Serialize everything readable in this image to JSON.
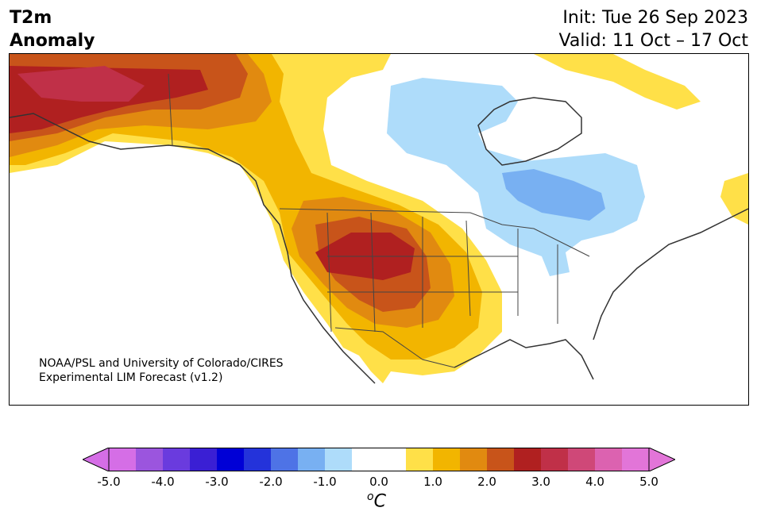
{
  "title": {
    "line1": "T2m",
    "line2": "Anomaly"
  },
  "run": {
    "init": "Init: Tue 26 Sep 2023",
    "valid": "Valid: 11 Oct – 17 Oct"
  },
  "credit": {
    "line1": "NOAA/PSL and University of Colorado/CIRES",
    "line2": "Experimental LIM Forecast (v1.2)"
  },
  "colorbar": {
    "unit_prefix": "o",
    "unit": "C",
    "tick_labels": [
      "-5.0",
      "-4.0",
      "-3.0",
      "-2.0",
      "-1.0",
      "0.0",
      "1.0",
      "2.0",
      "3.0",
      "4.0",
      "5.0"
    ],
    "colors": [
      "#d56ee6",
      "#9b55de",
      "#6a3bde",
      "#3a1fd4",
      "#0000d6",
      "#2433da",
      "#4e73e6",
      "#78b0f2",
      "#aedcfa",
      "#ffffff",
      "#ffffff",
      "#ffe048",
      "#f2b500",
      "#e18a10",
      "#c8541a",
      "#b02020",
      "#c03048",
      "#cf4878",
      "#dc62b0",
      "#e275d8"
    ],
    "extend_min_color": "#d56ee6",
    "extend_max_color": "#e275d8"
  },
  "map": {
    "region": "North America",
    "shading": {
      "strong_warm": "#b02020",
      "warm": "#c8541a",
      "mild_warm": "#e18a10",
      "slight_warm": "#f2b500",
      "faint_warm": "#ffe048",
      "faint_cool": "#aedcfa",
      "slight_cool": "#78b0f2",
      "deep_warm_alaska": "#c03048"
    },
    "coast_color": "#333333"
  }
}
